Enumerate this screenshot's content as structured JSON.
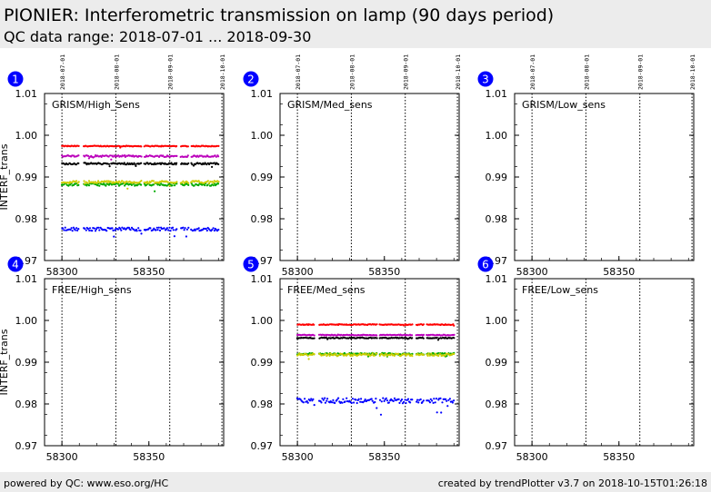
{
  "header": {
    "title": "PIONIER: Interferometric transmission on lamp (90 days period)",
    "subtitle": "QC data range: 2018-07-01 ... 2018-09-30"
  },
  "footer": {
    "left": "powered by QC: www.eso.org/HC",
    "right": "created by trendPlotter v3.7 on 2018-10-15T01:26:18"
  },
  "colors": {
    "red": "#ff0000",
    "magenta": "#bb00bb",
    "black": "#000000",
    "green": "#00aa00",
    "yellow": "#cccc00",
    "blue": "#0000ff",
    "marker": "#0000ff"
  },
  "chart_data": [
    {
      "type": "scatter",
      "id": 1,
      "label": "GRISM/High_Sens",
      "ylabel": "INTERF_trans",
      "xlim": [
        58290,
        58393
      ],
      "ylim": [
        0.97,
        1.01
      ],
      "xticks": [
        58300,
        58350
      ],
      "yticks": [
        0.97,
        0.98,
        0.99,
        1.0,
        1.01
      ],
      "date_marks": [
        {
          "mjd": 58300,
          "label": "2018-07-01"
        },
        {
          "mjd": 58331,
          "label": "2018-08-01"
        },
        {
          "mjd": 58362,
          "label": "2018-09-01"
        },
        {
          "mjd": 58392,
          "label": "2018-10-01"
        }
      ],
      "series": [
        {
          "color": "red",
          "x_range": [
            58300,
            58390
          ],
          "level": 0.9974,
          "noise": 0.0001
        },
        {
          "color": "magenta",
          "x_range": [
            58300,
            58390
          ],
          "level": 0.995,
          "noise": 0.0002
        },
        {
          "color": "black",
          "x_range": [
            58300,
            58390
          ],
          "level": 0.9932,
          "noise": 0.0002
        },
        {
          "color": "green",
          "x_range": [
            58300,
            58390
          ],
          "level": 0.9882,
          "noise": 0.0003
        },
        {
          "color": "yellow",
          "x_range": [
            58300,
            58390
          ],
          "level": 0.9888,
          "noise": 0.0003
        },
        {
          "color": "blue",
          "x_range": [
            58300,
            58390
          ],
          "level": 0.9775,
          "noise": 0.0004
        }
      ]
    },
    {
      "type": "scatter",
      "id": 2,
      "label": "GRISM/Med_sens",
      "ylabel": "",
      "xlim": [
        58290,
        58393
      ],
      "ylim": [
        0.97,
        1.01
      ],
      "xticks": [
        58300,
        58350
      ],
      "yticks": [
        0.97,
        0.98,
        0.99,
        1.0,
        1.01
      ],
      "date_marks": [
        {
          "mjd": 58300,
          "label": "2018-07-01"
        },
        {
          "mjd": 58331,
          "label": "2018-08-01"
        },
        {
          "mjd": 58362,
          "label": "2018-09-01"
        },
        {
          "mjd": 58392,
          "label": "2018-10-01"
        }
      ],
      "series": []
    },
    {
      "type": "scatter",
      "id": 3,
      "label": "GRISM/Low_sens",
      "ylabel": "",
      "xlim": [
        58290,
        58393
      ],
      "ylim": [
        0.97,
        1.01
      ],
      "xticks": [
        58300,
        58350
      ],
      "yticks": [
        0.97,
        0.98,
        0.99,
        1.0,
        1.01
      ],
      "date_marks": [
        {
          "mjd": 58300,
          "label": "2018-07-01"
        },
        {
          "mjd": 58331,
          "label": "2018-08-01"
        },
        {
          "mjd": 58362,
          "label": "2018-09-01"
        },
        {
          "mjd": 58392,
          "label": "2018-10-01"
        }
      ],
      "series": []
    },
    {
      "type": "scatter",
      "id": 4,
      "label": "FREE/High_sens",
      "ylabel": "INTERF_trans",
      "xlim": [
        58290,
        58393
      ],
      "ylim": [
        0.97,
        1.01
      ],
      "xticks": [
        58300,
        58350
      ],
      "yticks": [
        0.97,
        0.98,
        0.99,
        1.0,
        1.01
      ],
      "date_marks": [
        {
          "mjd": 58300,
          "label": ""
        },
        {
          "mjd": 58331,
          "label": ""
        },
        {
          "mjd": 58362,
          "label": ""
        },
        {
          "mjd": 58392,
          "label": ""
        }
      ],
      "series": []
    },
    {
      "type": "scatter",
      "id": 5,
      "label": "FREE/Med_sens",
      "ylabel": "",
      "xlim": [
        58290,
        58393
      ],
      "ylim": [
        0.97,
        1.01
      ],
      "xticks": [
        58300,
        58350
      ],
      "yticks": [
        0.97,
        0.98,
        0.99,
        1.0,
        1.01
      ],
      "date_marks": [
        {
          "mjd": 58300,
          "label": ""
        },
        {
          "mjd": 58331,
          "label": ""
        },
        {
          "mjd": 58362,
          "label": ""
        },
        {
          "mjd": 58392,
          "label": ""
        }
      ],
      "series": [
        {
          "color": "red",
          "x_range": [
            58300,
            58390
          ],
          "level": 0.999,
          "noise": 0.0001
        },
        {
          "color": "magenta",
          "x_range": [
            58300,
            58390
          ],
          "level": 0.9965,
          "noise": 0.0001
        },
        {
          "color": "black",
          "x_range": [
            58300,
            58390
          ],
          "level": 0.9958,
          "noise": 0.0001
        },
        {
          "color": "green",
          "x_range": [
            58300,
            58390
          ],
          "level": 0.992,
          "noise": 0.0002
        },
        {
          "color": "yellow",
          "x_range": [
            58300,
            58390
          ],
          "level": 0.9918,
          "noise": 0.0003
        },
        {
          "color": "blue",
          "x_range": [
            58300,
            58390
          ],
          "level": 0.9808,
          "noise": 0.0006
        }
      ]
    },
    {
      "type": "scatter",
      "id": 6,
      "label": "FREE/Low_sens",
      "ylabel": "",
      "xlim": [
        58290,
        58393
      ],
      "ylim": [
        0.97,
        1.01
      ],
      "xticks": [
        58300,
        58350
      ],
      "yticks": [
        0.97,
        0.98,
        0.99,
        1.0,
        1.01
      ],
      "date_marks": [
        {
          "mjd": 58300,
          "label": ""
        },
        {
          "mjd": 58331,
          "label": ""
        },
        {
          "mjd": 58362,
          "label": ""
        },
        {
          "mjd": 58392,
          "label": ""
        }
      ],
      "series": []
    }
  ]
}
